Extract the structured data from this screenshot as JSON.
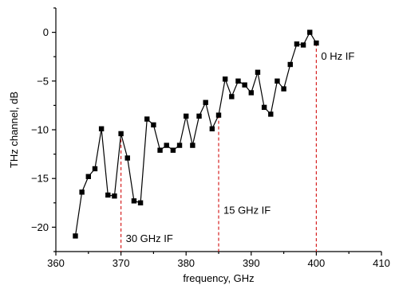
{
  "chart_data": {
    "type": "scatter",
    "xlabel": "frequency, GHz",
    "ylabel": "THz channel, dB",
    "xlim": [
      360,
      410
    ],
    "ylim": [
      -22.5,
      2.5
    ],
    "xticks": [
      360,
      370,
      380,
      390,
      400,
      410
    ],
    "yticks": [
      0,
      -5,
      -10,
      -15,
      -20
    ],
    "xtick_labels": [
      "360",
      "370",
      "380",
      "390",
      "400",
      "410"
    ],
    "ytick_labels": [
      "0",
      "−5",
      "−10",
      "−15",
      "−20"
    ],
    "grid": false,
    "colors": {
      "series": "#000000",
      "reference": "#d62020"
    },
    "series": [
      {
        "marker": "square",
        "points": [
          [
            363,
            -20.9
          ],
          [
            364,
            -16.4
          ],
          [
            365,
            -14.8
          ],
          [
            366,
            -14.0
          ],
          [
            367,
            -9.9
          ],
          [
            368,
            -16.7
          ],
          [
            369,
            -16.8
          ],
          [
            370,
            -10.4
          ],
          [
            371,
            -12.9
          ],
          [
            372,
            -17.3
          ],
          [
            373,
            -17.5
          ],
          [
            374,
            -8.9
          ],
          [
            375,
            -9.5
          ],
          [
            376,
            -12.1
          ],
          [
            377,
            -11.6
          ],
          [
            378,
            -12.1
          ],
          [
            379,
            -11.6
          ],
          [
            380,
            -8.6
          ],
          [
            381,
            -11.6
          ],
          [
            382,
            -8.6
          ],
          [
            383,
            -7.2
          ],
          [
            384,
            -9.9
          ],
          [
            385,
            -8.5
          ],
          [
            386,
            -4.8
          ],
          [
            387,
            -6.6
          ],
          [
            388,
            -5.0
          ],
          [
            389,
            -5.4
          ],
          [
            390,
            -6.2
          ],
          [
            391,
            -4.1
          ],
          [
            392,
            -7.7
          ],
          [
            393,
            -8.4
          ],
          [
            394,
            -5.0
          ],
          [
            395,
            -5.8
          ],
          [
            396,
            -3.3
          ],
          [
            397,
            -1.2
          ],
          [
            398,
            -1.3
          ],
          [
            399,
            0.0
          ],
          [
            400,
            -1.1
          ]
        ]
      }
    ],
    "annotations": [
      {
        "x": 370,
        "label": "30 GHz IF",
        "label_y": -21.5
      },
      {
        "x": 385,
        "label": "15 GHz IF",
        "label_y": -18.6
      },
      {
        "x": 400,
        "label": "0 Hz IF",
        "label_y": -2.8
      }
    ]
  }
}
